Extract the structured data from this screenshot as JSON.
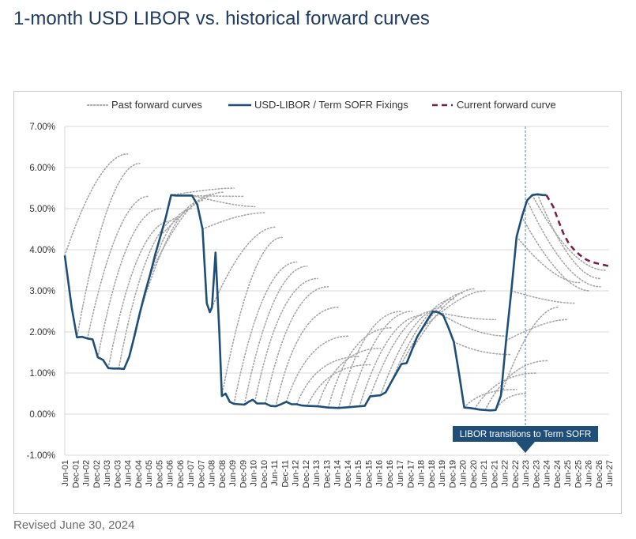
{
  "page": {
    "title": "1-month USD LIBOR vs. historical forward curves",
    "revised": "Revised June 30, 2024"
  },
  "chart_data": {
    "type": "line",
    "title": "1-month USD LIBOR vs. historical forward curves",
    "xlabel": "",
    "ylabel": "",
    "ylim": [
      -1,
      7
    ],
    "xlim": [
      2001.42,
      2027.42
    ],
    "grid": true,
    "legend_position": "top",
    "y_ticks": [
      "-1.00%",
      "0.00%",
      "1.00%",
      "2.00%",
      "3.00%",
      "4.00%",
      "5.00%",
      "6.00%",
      "7.00%"
    ],
    "y_tick_values": [
      -1,
      0,
      1,
      2,
      3,
      4,
      5,
      6,
      7
    ],
    "x_ticks": [
      "Jun-01",
      "Dec-01",
      "Jun-02",
      "Dec-02",
      "Jun-03",
      "Dec-03",
      "Jun-04",
      "Dec-04",
      "Jun-05",
      "Dec-05",
      "Jun-06",
      "Dec-06",
      "Jun-07",
      "Dec-07",
      "Jun-08",
      "Dec-08",
      "Jun-09",
      "Dec-09",
      "Jun-10",
      "Dec-10",
      "Jun-11",
      "Dec-11",
      "Jun-12",
      "Dec-12",
      "Jun-13",
      "Dec-13",
      "Jun-14",
      "Dec-14",
      "Jun-15",
      "Dec-15",
      "Jun-16",
      "Dec-16",
      "Jun-17",
      "Dec-17",
      "Jun-18",
      "Dec-18",
      "Jun-19",
      "Dec-19",
      "Jun-20",
      "Dec-20",
      "Jun-21",
      "Dec-21",
      "Jun-22",
      "Dec-22",
      "Jun-23",
      "Dec-23",
      "Jun-24",
      "Dec-24",
      "Jun-25",
      "Dec-25",
      "Jun-26",
      "Dec-26",
      "Jun-27"
    ],
    "legend": [
      {
        "name": "Past forward curves",
        "style": "dotted",
        "color": "#a6a6a6"
      },
      {
        "name": "USD-LIBOR / Term SOFR Fixings",
        "style": "solid",
        "color": "#1f4e79"
      },
      {
        "name": "Current forward curve",
        "style": "dashed",
        "color": "#7b1f4f"
      }
    ],
    "fixings": {
      "name": "USD-LIBOR / Term SOFR Fixings",
      "points": [
        [
          2001.42,
          3.86
        ],
        [
          2001.75,
          2.6
        ],
        [
          2002.0,
          1.87
        ],
        [
          2002.25,
          1.88
        ],
        [
          2002.5,
          1.84
        ],
        [
          2002.75,
          1.82
        ],
        [
          2003.0,
          1.38
        ],
        [
          2003.25,
          1.32
        ],
        [
          2003.5,
          1.12
        ],
        [
          2003.75,
          1.11
        ],
        [
          2004.0,
          1.11
        ],
        [
          2004.25,
          1.1
        ],
        [
          2004.5,
          1.4
        ],
        [
          2004.75,
          1.9
        ],
        [
          2005.0,
          2.45
        ],
        [
          2005.25,
          2.95
        ],
        [
          2005.5,
          3.4
        ],
        [
          2005.75,
          3.9
        ],
        [
          2006.0,
          4.35
        ],
        [
          2006.25,
          4.8
        ],
        [
          2006.5,
          5.33
        ],
        [
          2006.75,
          5.32
        ],
        [
          2007.0,
          5.32
        ],
        [
          2007.25,
          5.32
        ],
        [
          2007.5,
          5.32
        ],
        [
          2007.75,
          5.1
        ],
        [
          2008.0,
          4.5
        ],
        [
          2008.2,
          2.7
        ],
        [
          2008.35,
          2.48
        ],
        [
          2008.45,
          2.6
        ],
        [
          2008.62,
          3.93
        ],
        [
          2008.8,
          2.0
        ],
        [
          2008.92,
          0.44
        ],
        [
          2009.1,
          0.5
        ],
        [
          2009.3,
          0.3
        ],
        [
          2009.5,
          0.25
        ],
        [
          2009.75,
          0.24
        ],
        [
          2010.0,
          0.23
        ],
        [
          2010.2,
          0.3
        ],
        [
          2010.4,
          0.35
        ],
        [
          2010.6,
          0.26
        ],
        [
          2010.8,
          0.26
        ],
        [
          2011.0,
          0.26
        ],
        [
          2011.25,
          0.2
        ],
        [
          2011.5,
          0.19
        ],
        [
          2011.75,
          0.24
        ],
        [
          2012.0,
          0.3
        ],
        [
          2012.25,
          0.24
        ],
        [
          2012.5,
          0.24
        ],
        [
          2012.75,
          0.21
        ],
        [
          2013.0,
          0.2
        ],
        [
          2013.5,
          0.19
        ],
        [
          2014.0,
          0.16
        ],
        [
          2014.5,
          0.15
        ],
        [
          2015.0,
          0.17
        ],
        [
          2015.5,
          0.19
        ],
        [
          2015.75,
          0.2
        ],
        [
          2016.0,
          0.43
        ],
        [
          2016.5,
          0.46
        ],
        [
          2016.75,
          0.53
        ],
        [
          2017.0,
          0.77
        ],
        [
          2017.5,
          1.22
        ],
        [
          2017.75,
          1.24
        ],
        [
          2018.0,
          1.56
        ],
        [
          2018.25,
          1.88
        ],
        [
          2018.5,
          2.09
        ],
        [
          2018.75,
          2.3
        ],
        [
          2019.0,
          2.5
        ],
        [
          2019.25,
          2.48
        ],
        [
          2019.5,
          2.4
        ],
        [
          2019.75,
          2.1
        ],
        [
          2020.0,
          1.76
        ],
        [
          2020.25,
          0.99
        ],
        [
          2020.5,
          0.16
        ],
        [
          2020.75,
          0.15
        ],
        [
          2021.0,
          0.13
        ],
        [
          2021.25,
          0.11
        ],
        [
          2021.5,
          0.1
        ],
        [
          2021.75,
          0.09
        ],
        [
          2022.0,
          0.1
        ],
        [
          2022.25,
          0.45
        ],
        [
          2022.5,
          1.79
        ],
        [
          2022.75,
          3.0
        ],
        [
          2023.0,
          4.32
        ],
        [
          2023.25,
          4.8
        ],
        [
          2023.5,
          5.2
        ],
        [
          2023.75,
          5.33
        ],
        [
          2024.0,
          5.35
        ],
        [
          2024.25,
          5.33
        ],
        [
          2024.42,
          5.33
        ]
      ]
    },
    "current_forward_curve": {
      "name": "Current forward curve",
      "points": [
        [
          2024.42,
          5.33
        ],
        [
          2024.75,
          5.05
        ],
        [
          2025.0,
          4.7
        ],
        [
          2025.25,
          4.38
        ],
        [
          2025.5,
          4.15
        ],
        [
          2025.75,
          4.0
        ],
        [
          2026.0,
          3.88
        ],
        [
          2026.25,
          3.78
        ],
        [
          2026.5,
          3.72
        ],
        [
          2026.75,
          3.68
        ],
        [
          2027.0,
          3.65
        ],
        [
          2027.42,
          3.6
        ]
      ]
    },
    "past_forward_curves": [
      {
        "start": [
          2001.42,
          3.86
        ],
        "end": [
          2004.42,
          6.33
        ],
        "mid": 0.55
      },
      {
        "start": [
          2002.0,
          1.87
        ],
        "end": [
          2005.0,
          6.1
        ],
        "mid": 0.5
      },
      {
        "start": [
          2002.5,
          1.84
        ],
        "end": [
          2005.42,
          5.3
        ],
        "mid": 0.5
      },
      {
        "start": [
          2003.0,
          1.38
        ],
        "end": [
          2006.0,
          5.0
        ],
        "mid": 0.45
      },
      {
        "start": [
          2003.5,
          1.12
        ],
        "end": [
          2006.5,
          4.7
        ],
        "mid": 0.45
      },
      {
        "start": [
          2004.0,
          1.11
        ],
        "end": [
          2007.0,
          4.8
        ],
        "mid": 0.45
      },
      {
        "start": [
          2004.5,
          1.4
        ],
        "end": [
          2007.5,
          5.0
        ],
        "mid": 0.5
      },
      {
        "start": [
          2005.0,
          2.45
        ],
        "end": [
          2008.0,
          5.2
        ],
        "mid": 0.55
      },
      {
        "start": [
          2005.5,
          3.4
        ],
        "end": [
          2008.5,
          5.35
        ],
        "mid": 0.6
      },
      {
        "start": [
          2006.0,
          4.35
        ],
        "end": [
          2009.0,
          5.4
        ],
        "mid": 0.65
      },
      {
        "start": [
          2006.5,
          5.33
        ],
        "end": [
          2009.5,
          5.5
        ],
        "mid": 0.7
      },
      {
        "start": [
          2007.0,
          5.32
        ],
        "end": [
          2010.0,
          5.3
        ],
        "mid": 0.7
      },
      {
        "start": [
          2007.5,
          5.32
        ],
        "end": [
          2010.5,
          5.05
        ],
        "mid": 0.7
      },
      {
        "start": [
          2008.0,
          4.5
        ],
        "end": [
          2011.0,
          4.9
        ],
        "mid": 0.6
      },
      {
        "start": [
          2008.45,
          2.6
        ],
        "end": [
          2011.5,
          4.55
        ],
        "mid": 0.55
      },
      {
        "start": [
          2008.92,
          0.44
        ],
        "end": [
          2011.8,
          4.3
        ],
        "mid": 0.5
      },
      {
        "start": [
          2009.5,
          0.25
        ],
        "end": [
          2012.5,
          3.7
        ],
        "mid": 0.45
      },
      {
        "start": [
          2010.0,
          0.23
        ],
        "end": [
          2013.0,
          3.6
        ],
        "mid": 0.45
      },
      {
        "start": [
          2010.5,
          0.3
        ],
        "end": [
          2013.5,
          3.3
        ],
        "mid": 0.4
      },
      {
        "start": [
          2011.0,
          0.26
        ],
        "end": [
          2014.0,
          3.1
        ],
        "mid": 0.4
      },
      {
        "start": [
          2011.5,
          0.19
        ],
        "end": [
          2014.5,
          2.6
        ],
        "mid": 0.35
      },
      {
        "start": [
          2012.0,
          0.3
        ],
        "end": [
          2015.0,
          1.9
        ],
        "mid": 0.35
      },
      {
        "start": [
          2012.5,
          0.24
        ],
        "end": [
          2015.5,
          1.4
        ],
        "mid": 0.3
      },
      {
        "start": [
          2013.0,
          0.2
        ],
        "end": [
          2016.0,
          1.2
        ],
        "mid": 0.3
      },
      {
        "start": [
          2013.5,
          0.19
        ],
        "end": [
          2016.5,
          1.6
        ],
        "mid": 0.3
      },
      {
        "start": [
          2014.0,
          0.16
        ],
        "end": [
          2017.0,
          2.1
        ],
        "mid": 0.35
      },
      {
        "start": [
          2014.5,
          0.15
        ],
        "end": [
          2017.5,
          2.5
        ],
        "mid": 0.4
      },
      {
        "start": [
          2015.0,
          0.17
        ],
        "end": [
          2018.0,
          2.5
        ],
        "mid": 0.45
      },
      {
        "start": [
          2015.5,
          0.19
        ],
        "end": [
          2018.5,
          2.4
        ],
        "mid": 0.45
      },
      {
        "start": [
          2016.0,
          0.43
        ],
        "end": [
          2019.0,
          2.5
        ],
        "mid": 0.5
      },
      {
        "start": [
          2016.5,
          0.46
        ],
        "end": [
          2019.5,
          2.6
        ],
        "mid": 0.5
      },
      {
        "start": [
          2017.0,
          0.77
        ],
        "end": [
          2020.0,
          2.8
        ],
        "mid": 0.55
      },
      {
        "start": [
          2017.5,
          1.22
        ],
        "end": [
          2020.5,
          2.95
        ],
        "mid": 0.6
      },
      {
        "start": [
          2018.0,
          1.56
        ],
        "end": [
          2021.0,
          3.05
        ],
        "mid": 0.6
      },
      {
        "start": [
          2018.5,
          2.09
        ],
        "end": [
          2021.5,
          3.0
        ],
        "mid": 0.65
      },
      {
        "start": [
          2019.0,
          2.5
        ],
        "end": [
          2022.0,
          2.3
        ],
        "mid": 0.6
      },
      {
        "start": [
          2019.5,
          2.4
        ],
        "end": [
          2022.5,
          1.9
        ],
        "mid": 0.55
      },
      {
        "start": [
          2020.0,
          1.76
        ],
        "end": [
          2022.75,
          1.45
        ],
        "mid": 0.45
      },
      {
        "start": [
          2020.5,
          0.16
        ],
        "end": [
          2023.0,
          0.6
        ],
        "mid": 0.3
      },
      {
        "start": [
          2021.0,
          0.13
        ],
        "end": [
          2024.0,
          1.0
        ],
        "mid": 0.35
      },
      {
        "start": [
          2021.5,
          0.1
        ],
        "end": [
          2024.5,
          1.3
        ],
        "mid": 0.4
      },
      {
        "start": [
          2022.0,
          0.1
        ],
        "end": [
          2023.5,
          0.5
        ],
        "mid": 0.3
      },
      {
        "start": [
          2022.25,
          0.45
        ],
        "end": [
          2025.0,
          2.6
        ],
        "mid": 0.55
      },
      {
        "start": [
          2022.5,
          1.79
        ],
        "end": [
          2025.42,
          2.3
        ],
        "mid": 0.65
      },
      {
        "start": [
          2022.75,
          3.0
        ],
        "end": [
          2025.75,
          2.7
        ],
        "mid": 0.65
      },
      {
        "start": [
          2023.0,
          4.32
        ],
        "end": [
          2026.0,
          3.2
        ],
        "mid": 0.6
      },
      {
        "start": [
          2023.25,
          4.8
        ],
        "end": [
          2026.5,
          3.0
        ],
        "mid": 0.6
      },
      {
        "start": [
          2023.5,
          5.2
        ],
        "end": [
          2027.0,
          3.1
        ],
        "mid": 0.55
      },
      {
        "start": [
          2023.75,
          5.33
        ],
        "end": [
          2027.25,
          3.5
        ],
        "mid": 0.55
      },
      {
        "start": [
          2024.0,
          5.35
        ],
        "end": [
          2027.0,
          3.3
        ],
        "mid": 0.55
      }
    ],
    "annotation": {
      "text": "LIBOR transitions to Term SOFR",
      "x": 2023.42
    }
  }
}
